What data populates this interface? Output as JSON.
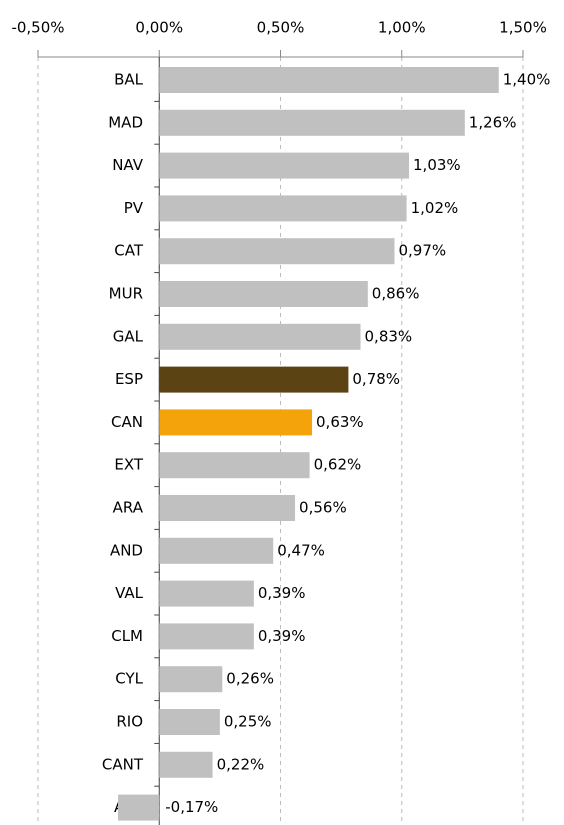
{
  "chart_data": {
    "type": "bar",
    "orientation": "horizontal",
    "categories": [
      "BAL",
      "MAD",
      "NAV",
      "PV",
      "CAT",
      "MUR",
      "GAL",
      "ESP",
      "CAN",
      "EXT",
      "ARA",
      "AND",
      "VAL",
      "CLM",
      "CYL",
      "RIO",
      "CANT",
      "AST"
    ],
    "values": [
      1.4,
      1.26,
      1.03,
      1.02,
      0.97,
      0.86,
      0.83,
      0.78,
      0.63,
      0.62,
      0.56,
      0.47,
      0.39,
      0.39,
      0.26,
      0.25,
      0.22,
      -0.17
    ],
    "value_labels": [
      "1,40%",
      "1,26%",
      "1,03%",
      "1,02%",
      "0,97%",
      "0,86%",
      "0,83%",
      "0,78%",
      "0,63%",
      "0,62%",
      "0,56%",
      "0,47%",
      "0,39%",
      "0,39%",
      "0,26%",
      "0,25%",
      "0,22%",
      "-0,17%"
    ],
    "colors": [
      "#c0c0c0",
      "#c0c0c0",
      "#c0c0c0",
      "#c0c0c0",
      "#c0c0c0",
      "#c0c0c0",
      "#c0c0c0",
      "#5c4313",
      "#f5a30a",
      "#c0c0c0",
      "#c0c0c0",
      "#c0c0c0",
      "#c0c0c0",
      "#c0c0c0",
      "#c0c0c0",
      "#c0c0c0",
      "#c0c0c0",
      "#c0c0c0"
    ],
    "xlim": [
      -0.5,
      1.5
    ],
    "xticks": [
      {
        "value": -0.5,
        "label": "-0,50%"
      },
      {
        "value": 0,
        "label": "0,00%"
      },
      {
        "value": 0.5,
        "label": "0,50%"
      },
      {
        "value": 1.0,
        "label": "1,00%"
      },
      {
        "value": 1.5,
        "label": "1,50%"
      }
    ],
    "grid": true
  }
}
